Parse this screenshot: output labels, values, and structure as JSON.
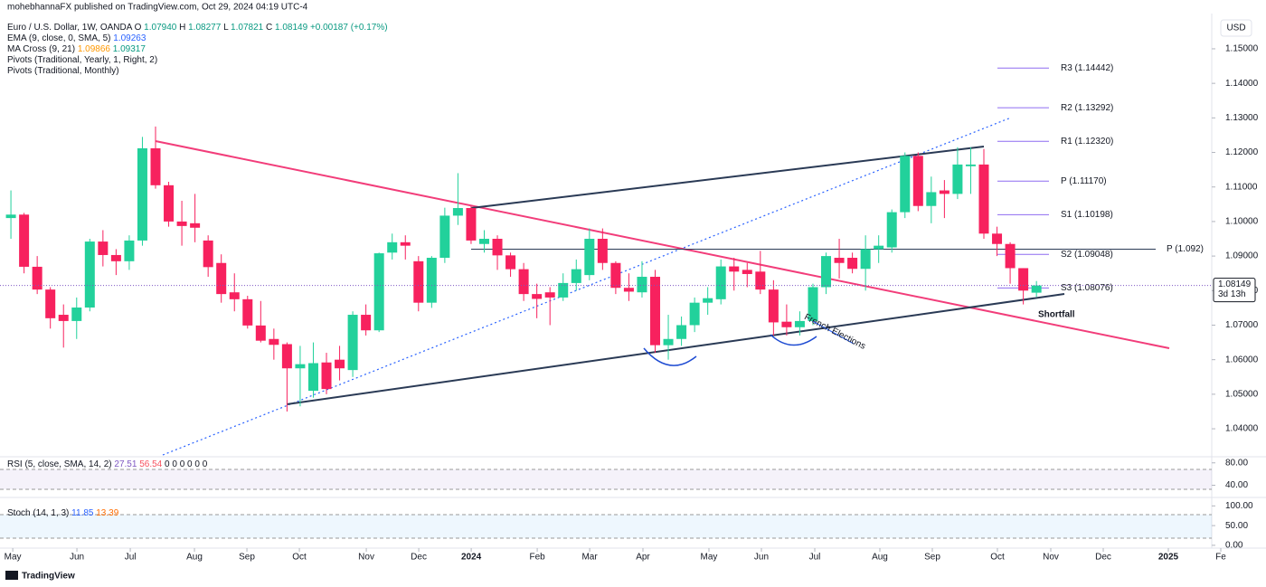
{
  "chart_data": {
    "type": "candlestick",
    "published": "mohebhannaFX published on TradingView.com, Oct 29, 2024 04:19 UTC-4",
    "symbol": "Euro / U.S. Dollar, 1W, OANDA",
    "ohlc_header": [
      {
        "label": "O",
        "value": "1.07940"
      },
      {
        "label": "H",
        "value": "1.08277"
      },
      {
        "label": "L",
        "value": "1.07821"
      },
      {
        "label": "C",
        "value": "1.08149"
      },
      {
        "label": "",
        "value": "+0.00187 (+0.17%)"
      }
    ],
    "indicators": [
      {
        "name": "EMA (9, close, 0, SMA, 5)",
        "readings": [
          {
            "text": "1.09263",
            "color": "#2962ff"
          }
        ]
      },
      {
        "name": "MA Cross (9, 21)",
        "readings": [
          {
            "text": "1.09866",
            "color": "#ff9800"
          },
          {
            "text": "1.09317",
            "color": "#089981"
          }
        ]
      },
      {
        "name": "Pivots (Traditional, Yearly, 1, Right, 2)",
        "readings": []
      },
      {
        "name": "Pivots (Traditional, Monthly)",
        "readings": []
      }
    ],
    "currency": "USD",
    "up_color": "#22d19b",
    "down_color": "#f7215e",
    "open": [
      1.101,
      1.102,
      1.0869,
      1.0803,
      1.073,
      1.0712,
      1.0751,
      1.0942,
      1.0903,
      1.0885,
      1.0945,
      1.1212,
      1.1105,
      1.1,
      1.0995,
      1.0945,
      1.088,
      1.0795,
      1.0775,
      1.0699,
      1.066,
      1.0645,
      1.0575,
      1.051,
      1.0592,
      1.06,
      1.057,
      1.073,
      1.0685,
      1.091,
      1.094,
      1.0885,
      1.0765,
      1.0895,
      1.1017,
      1.1039,
      1.0935,
      1.095,
      1.0902,
      1.0862,
      1.079,
      1.0795,
      1.078,
      1.0822,
      1.0845,
      1.095,
      1.088,
      1.0808,
      1.0795,
      1.084,
      1.0642,
      1.066,
      1.07,
      1.0765,
      1.0775,
      1.087,
      1.086,
      1.0855,
      1.0803,
      1.071,
      1.0694,
      1.0712,
      1.081,
      1.0895,
      1.0895,
      1.0863,
      1.092,
      1.0925,
      1.1027,
      1.119,
      1.1045,
      1.109,
      1.108,
      1.116,
      1.1165,
      1.0965,
      1.0935,
      1.0865,
      1.0794
    ],
    "high": [
      1.109,
      1.1025,
      1.09,
      1.081,
      1.076,
      1.078,
      1.095,
      1.0975,
      1.092,
      1.096,
      1.1245,
      1.1275,
      1.1115,
      1.106,
      1.108,
      1.096,
      1.0905,
      1.085,
      1.0785,
      1.077,
      1.069,
      1.065,
      1.064,
      1.065,
      1.062,
      1.064,
      1.074,
      1.076,
      1.091,
      1.0965,
      1.096,
      1.09,
      1.09,
      1.104,
      1.114,
      1.1045,
      1.0975,
      1.096,
      1.091,
      1.088,
      1.082,
      1.081,
      1.085,
      1.089,
      1.098,
      1.098,
      1.0885,
      1.085,
      1.0885,
      1.086,
      1.073,
      1.0725,
      1.078,
      1.081,
      1.089,
      1.0895,
      1.088,
      1.0915,
      1.083,
      1.076,
      1.074,
      1.082,
      1.091,
      1.095,
      1.091,
      1.096,
      1.096,
      1.1035,
      1.12,
      1.12,
      1.113,
      1.112,
      1.1215,
      1.1215,
      1.121,
      1.0985,
      1.094,
      1.0865,
      1.08277
    ],
    "low": [
      1.095,
      1.085,
      1.079,
      1.069,
      1.0635,
      1.066,
      1.074,
      1.087,
      1.0845,
      1.086,
      1.093,
      1.1095,
      1.0985,
      1.093,
      1.094,
      1.084,
      1.0765,
      1.074,
      1.069,
      1.065,
      1.06,
      1.045,
      1.0465,
      1.049,
      1.05,
      1.054,
      1.055,
      1.067,
      1.068,
      1.089,
      1.089,
      1.074,
      1.075,
      1.088,
      1.099,
      1.0935,
      1.091,
      1.086,
      1.084,
      1.077,
      1.072,
      1.07,
      1.077,
      1.08,
      1.083,
      1.086,
      1.079,
      1.077,
      1.078,
      1.062,
      1.06,
      1.064,
      1.068,
      1.073,
      1.076,
      1.08,
      1.081,
      1.079,
      1.067,
      1.067,
      1.067,
      1.07,
      1.079,
      1.0835,
      1.085,
      1.08,
      1.088,
      1.091,
      1.101,
      1.103,
      1.0995,
      1.101,
      1.1065,
      1.108,
      1.095,
      1.09,
      1.082,
      1.076,
      1.07821
    ],
    "close": [
      1.102,
      1.0869,
      1.0803,
      1.072,
      1.0712,
      1.0751,
      1.0942,
      1.0903,
      1.0885,
      1.0945,
      1.1212,
      1.1105,
      1.1,
      1.0987,
      1.0982,
      1.0868,
      1.079,
      1.0775,
      1.0699,
      1.0655,
      1.0643,
      1.0575,
      1.0587,
      1.059,
      1.0515,
      1.0575,
      1.073,
      1.0685,
      1.0908,
      1.094,
      1.093,
      1.0765,
      1.0895,
      1.1017,
      1.1039,
      1.0945,
      1.095,
      1.0902,
      1.0862,
      1.079,
      1.0776,
      1.078,
      1.0822,
      1.0862,
      1.095,
      1.088,
      1.0808,
      1.0797,
      1.084,
      1.0642,
      1.066,
      1.07,
      1.0765,
      1.0778,
      1.087,
      1.0855,
      1.0848,
      1.0803,
      1.0708,
      1.0694,
      1.0712,
      1.081,
      1.09,
      1.088,
      1.0863,
      1.092,
      1.093,
      1.1027,
      1.119,
      1.1045,
      1.1085,
      1.108,
      1.1165,
      1.1165,
      1.0965,
      1.0935,
      1.0865,
      1.08,
      1.08149
    ],
    "last_price": {
      "value": 1.08149,
      "label": "1.08149",
      "countdown": "3d 13h"
    },
    "xlim": [
      -0.83,
      92.02
    ],
    "xticks": [
      {
        "value": 0.14,
        "label": "May"
      },
      {
        "value": 5.02,
        "label": "Jun"
      },
      {
        "value": 9.08,
        "label": "Jul"
      },
      {
        "value": 13.96,
        "label": "Aug"
      },
      {
        "value": 17.95,
        "label": "Sep"
      },
      {
        "value": 21.94,
        "label": "Oct"
      },
      {
        "value": 27.03,
        "label": "Nov"
      },
      {
        "value": 31.02,
        "label": "Dec"
      },
      {
        "value": 35.01,
        "label": "2024"
      },
      {
        "value": 40.03,
        "label": "Feb"
      },
      {
        "value": 44.02,
        "label": "Mar"
      },
      {
        "value": 48.07,
        "label": "Apr"
      },
      {
        "value": 53.09,
        "label": "May"
      },
      {
        "value": 57.08,
        "label": "Jun"
      },
      {
        "value": 61.14,
        "label": "Jul"
      },
      {
        "value": 66.09,
        "label": "Aug"
      },
      {
        "value": 70.08,
        "label": "Sep"
      },
      {
        "value": 75.03,
        "label": "Oct"
      },
      {
        "value": 79.09,
        "label": "Nov"
      },
      {
        "value": 83.08,
        "label": "Dec"
      },
      {
        "value": 88.03,
        "label": "2025"
      },
      {
        "value": 92.02,
        "label": "Fe"
      }
    ],
    "ylim": [
      1.0319,
      1.1602
    ],
    "yticks": [
      {
        "value": 1.15,
        "label": "1.15000"
      },
      {
        "value": 1.14,
        "label": "1.14000"
      },
      {
        "value": 1.13,
        "label": "1.13000"
      },
      {
        "value": 1.12,
        "label": "1.12000"
      },
      {
        "value": 1.11,
        "label": "1.11000"
      },
      {
        "value": 1.1,
        "label": "1.10000"
      },
      {
        "value": 1.09,
        "label": "1.09000"
      },
      {
        "value": 1.08,
        "label": "1.08000"
      },
      {
        "value": 1.07,
        "label": "1.07000"
      },
      {
        "value": 1.06,
        "label": "1.06000"
      },
      {
        "value": 1.05,
        "label": "1.05000"
      },
      {
        "value": 1.04,
        "label": "1.04000"
      }
    ],
    "pivots": [
      {
        "value": 1.14442,
        "label": "R3 (1.14442)"
      },
      {
        "value": 1.13292,
        "label": "R2 (1.13292)"
      },
      {
        "value": 1.1232,
        "label": "R1 (1.12320)"
      },
      {
        "value": 1.1117,
        "label": "P (1.11170)"
      },
      {
        "value": 1.10198,
        "label": "S1 (1.10198)"
      },
      {
        "value": 1.09048,
        "label": "S2 (1.09048)"
      },
      {
        "value": 1.08076,
        "label": "S3 (1.08076)"
      }
    ],
    "monthly_pivot": {
      "value": 1.092,
      "label": "P (1.092)"
    },
    "annotations": [
      "Shortfall",
      "French Elections"
    ],
    "panes": [
      {
        "title": "RSI (5, close, SMA, 14, 2)",
        "readings": [
          {
            "text": "27.51",
            "color": "#7e57c2"
          },
          {
            "text": "56.54",
            "color": "#f7525f"
          },
          {
            "text": "0 0 0 0 0 0",
            "color": "#131722"
          }
        ],
        "ylim": [
          18.2,
          90.9
        ],
        "yticks": [
          {
            "value": 80,
            "label": "80.00"
          },
          {
            "value": 40,
            "label": "40.00"
          }
        ]
      },
      {
        "title": "Stoch (14, 1, 3)",
        "readings": [
          {
            "text": "11.85",
            "color": "#2962ff"
          },
          {
            "text": "13.39",
            "color": "#ff6d00"
          }
        ],
        "ylim": [
          -7.1,
          121.4
        ],
        "yticks": [
          {
            "value": 100,
            "label": "100.00"
          },
          {
            "value": 50,
            "label": "50.00"
          },
          {
            "value": 0,
            "label": "0.00"
          }
        ]
      }
    ],
    "brand": "TradingView"
  }
}
